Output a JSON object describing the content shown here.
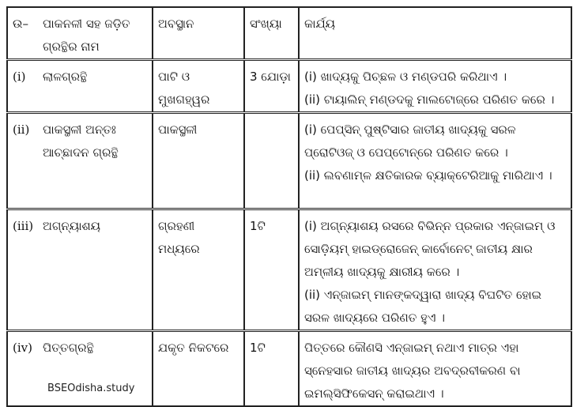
{
  "table": {
    "header": {
      "label": "ଉ–",
      "name": "ପାକନଳୀ ସହ ଜଡ଼ିତ ଗ୍ରନ୍ଥିର ନାମ",
      "location": "ଅବସ୍ଥାନ",
      "count": "ସଂଖ୍ୟା",
      "function": "କାର୍ଯ୍ୟ"
    },
    "rows": [
      {
        "num": "(i)",
        "name": "ଲାଳଗ୍ରନ୍ଥି",
        "location": "ପାଟି ଓ ମୁଖଗହ୍ୱର",
        "count": "3 ଯୋଡ଼ା",
        "functions": [
          "(i) ଖାଦ୍ୟକୁ ପିଚ୍ଛଳ ଓ ମଣ୍ଡପରି କରିଥାଏ ।",
          "(ii) ଟାୟାଲିନ୍ ମଣ୍ଡଦକୁ ମାଲଟୋଜ୍‌ରେ ପରିଣତ କରେ ।"
        ]
      },
      {
        "num": "(ii)",
        "name": "ପାକସ୍ଥଳୀ ଅନ୍ତଃ ଆଚ୍ଛାଦନ ଗ୍ରନ୍ଥି",
        "location": "ପାକସ୍ଥଳୀ",
        "count": "",
        "functions": [
          "(i) ପେପ୍‌ସିନ୍ ପୁଷ୍ଟିସାର ଜାତୀୟ ଖାଦ୍ୟକୁ ସରଳ ପ୍ରୋଟିଓଜ୍ ଓ ପେପ୍‌ଟୋନ୍‌ରେ ପରିଣତ କରେ ।",
          "(ii) ଲବଣାମ୍ଳ କ୍ଷତିକାରକ ବ୍ୟାକ୍ଟେରିଆକୁ ମାରିଥାଏ ।"
        ]
      },
      {
        "num": "(iii)",
        "name": "ଅଗ୍ନ୍ୟାଶୟ",
        "location": "ଗ୍ରହଣୀ ମଧ୍ୟରେ",
        "count": "1ଟି",
        "functions": [
          "(i) ଅଗ୍ନ୍ୟାଶୟ ରସରେ ବିଭିନ୍ନ ପ୍ରକାର ଏନ୍‌ଜାଇମ୍ ଓ ସୋଡ଼ିୟମ୍ ହାଇଡ୍ରୋଜେନ୍ କାର୍ବୋନେଟ୍ ଜାତୀୟ କ୍ଷାର ଅମ୍ଳୀୟ ଖାଦ୍ୟକୁ କ୍ଷାରୀୟ କରେ ।",
          "(ii) ଏନ୍‌ଜାଇମ୍ ମାନଙ୍କଦ୍ୱାରା ଖାଦ୍ୟ ବିଘଟିତ ହୋଇ ସରଳ ଖାଦ୍ୟରେ ପରିଣତ ହୁଏ ।"
        ]
      },
      {
        "num": "(iv)",
        "name": "ପିତ୍ତଗ୍ରନ୍ଥି",
        "location": "ଯକୃତ ନିକଟରେ",
        "count": "1ଟି",
        "functions": [
          "ପିତ୍ତରେ କୌଣସି ଏନ୍‌ଜାଇମ୍ ନଥାଏ ମାତ୍ର ଏହା ସ୍ନେହସାର ଜାତୀୟ ଖାଦ୍ୟର ଅବଦ୍ରବୀକରଣ ବା ଇମଲ୍‌ସିଫିକେସନ୍ କରାଇଥାଏ ।"
        ]
      }
    ]
  },
  "watermark": "BSEOdisha.study"
}
